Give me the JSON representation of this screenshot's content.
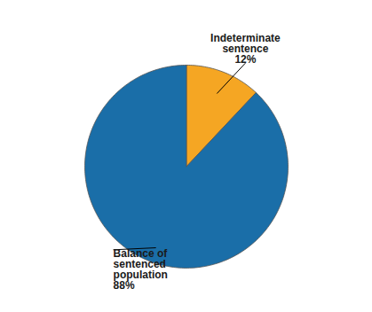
{
  "chart_data": {
    "type": "pie",
    "values": [
      12,
      88
    ],
    "colors": [
      "#f5a623",
      "#1a6ea8"
    ],
    "annotations": [
      "Indeterminate\nsentence\n12%",
      "Balance of\nsentenced\npopulation\n88%"
    ]
  }
}
